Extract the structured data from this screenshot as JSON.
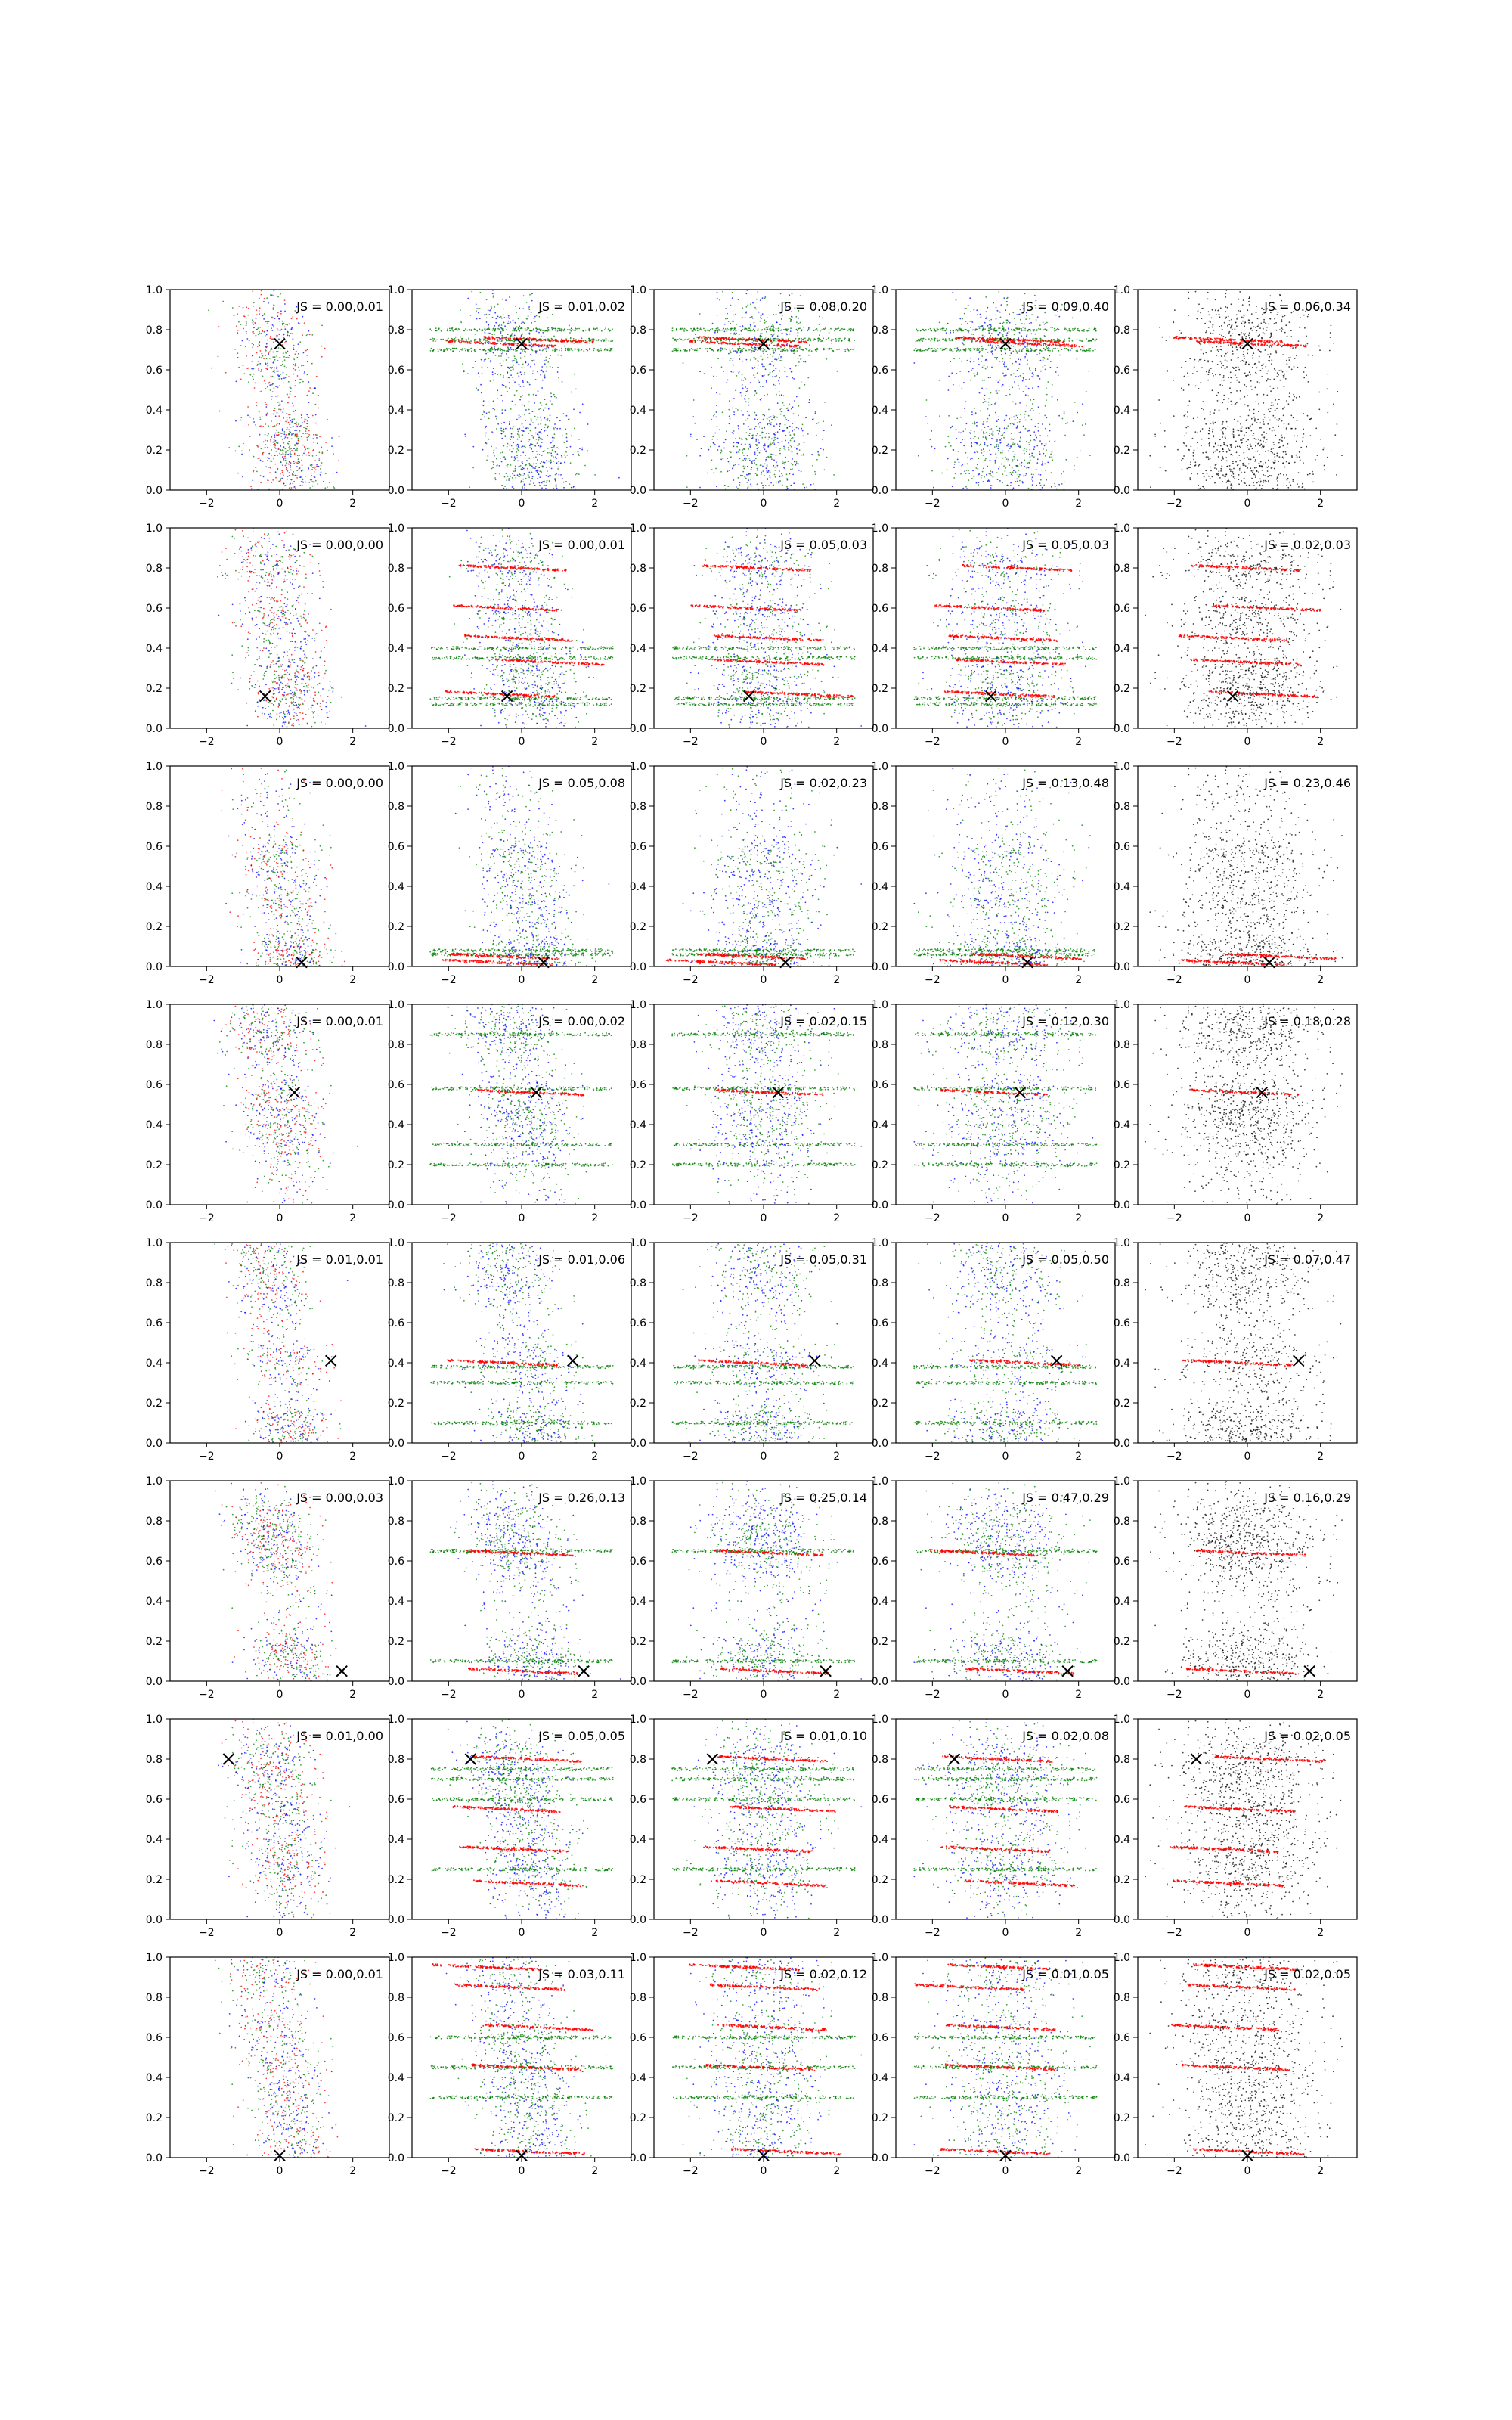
{
  "figure": {
    "rows": 8,
    "cols": 5,
    "colors": {
      "blue": "#0000ff",
      "green": "#008000",
      "red": "#ff0000",
      "black": "#000000"
    }
  },
  "chart_data": {
    "type": "scatter",
    "xlim": [
      -3,
      3
    ],
    "ylim": [
      0,
      1
    ],
    "xticks": [
      -2,
      0,
      2
    ],
    "xtick_labels": [
      "−2",
      "0",
      "2"
    ],
    "yticks": [
      0.0,
      0.2,
      0.4,
      0.6,
      0.8,
      1.0
    ],
    "ytick_labels": [
      "0.0",
      "0.2",
      "0.4",
      "0.6",
      "0.8",
      "1.0"
    ],
    "grid": false,
    "marker": {
      "symbol": "x",
      "color": "#000000",
      "positions": [
        [
          0.0,
          0.73
        ],
        [
          -0.4,
          0.16
        ],
        [
          0.6,
          0.02
        ],
        [
          0.4,
          0.56
        ],
        [
          1.4,
          0.41
        ],
        [
          1.7,
          0.05
        ],
        [
          -1.4,
          0.8
        ],
        [
          0.0,
          0.01
        ]
      ]
    },
    "js_labels": [
      [
        "JS = 0.00,0.01",
        "JS = 0.01,0.02",
        "JS = 0.08,0.20",
        "JS = 0.09,0.40",
        "JS = 0.06,0.34"
      ],
      [
        "JS = 0.00,0.00",
        "JS = 0.00,0.01",
        "JS = 0.05,0.03",
        "JS = 0.05,0.03",
        "JS = 0.02,0.03"
      ],
      [
        "JS = 0.00,0.00",
        "JS = 0.05,0.08",
        "JS = 0.02,0.23",
        "JS = 0.13,0.48",
        "JS = 0.23,0.46"
      ],
      [
        "JS = 0.00,0.01",
        "JS = 0.00,0.02",
        "JS = 0.02,0.15",
        "JS = 0.12,0.30",
        "JS = 0.18,0.28"
      ],
      [
        "JS = 0.01,0.01",
        "JS = 0.01,0.06",
        "JS = 0.05,0.31",
        "JS = 0.05,0.50",
        "JS = 0.07,0.47"
      ],
      [
        "JS = 0.00,0.03",
        "JS = 0.26,0.13",
        "JS = 0.25,0.14",
        "JS = 0.47,0.29",
        "JS = 0.16,0.29"
      ],
      [
        "JS = 0.01,0.00",
        "JS = 0.05,0.05",
        "JS = 0.01,0.10",
        "JS = 0.02,0.08",
        "JS = 0.02,0.05"
      ],
      [
        "JS = 0.00,0.01",
        "JS = 0.03,0.11",
        "JS = 0.02,0.12",
        "JS = 0.01,0.05",
        "JS = 0.02,0.05"
      ]
    ],
    "row_bands": [
      [
        0.3,
        0.07,
        0.2,
        0.62,
        0.8
      ],
      [
        0.28,
        0.15,
        0.55,
        0.8
      ],
      [
        0.05,
        0.55,
        0.3,
        0.02
      ],
      [
        0.95,
        0.55,
        0.43,
        0.3,
        0.8
      ],
      [
        0.4,
        0.95,
        0.1,
        0.75,
        0.05
      ],
      [
        0.8,
        0.7,
        0.15,
        0.08,
        0.6
      ],
      [
        0.8,
        0.35,
        0.7,
        0.2,
        0.55
      ],
      [
        0.95,
        0.45,
        0.65,
        0.05,
        0.25
      ]
    ],
    "red_bands": [
      [
        0.73,
        0.75
      ],
      [
        0.8,
        0.6,
        0.45,
        0.33,
        0.17
      ],
      [
        0.02,
        0.05
      ],
      [
        0.56
      ],
      [
        0.4
      ],
      [
        0.05,
        0.64
      ],
      [
        0.8,
        0.55,
        0.35,
        0.18
      ],
      [
        0.95,
        0.85,
        0.65,
        0.45,
        0.03
      ]
    ],
    "green_bands": [
      [
        0.8,
        0.75,
        0.7
      ],
      [
        0.4,
        0.35,
        0.15,
        0.12
      ],
      [
        0.08,
        0.06
      ],
      [
        0.85,
        0.58,
        0.3,
        0.2
      ],
      [
        0.38,
        0.3,
        0.1
      ],
      [
        0.65,
        0.1
      ],
      [
        0.75,
        0.7,
        0.6,
        0.25
      ],
      [
        0.6,
        0.45,
        0.3
      ]
    ]
  }
}
